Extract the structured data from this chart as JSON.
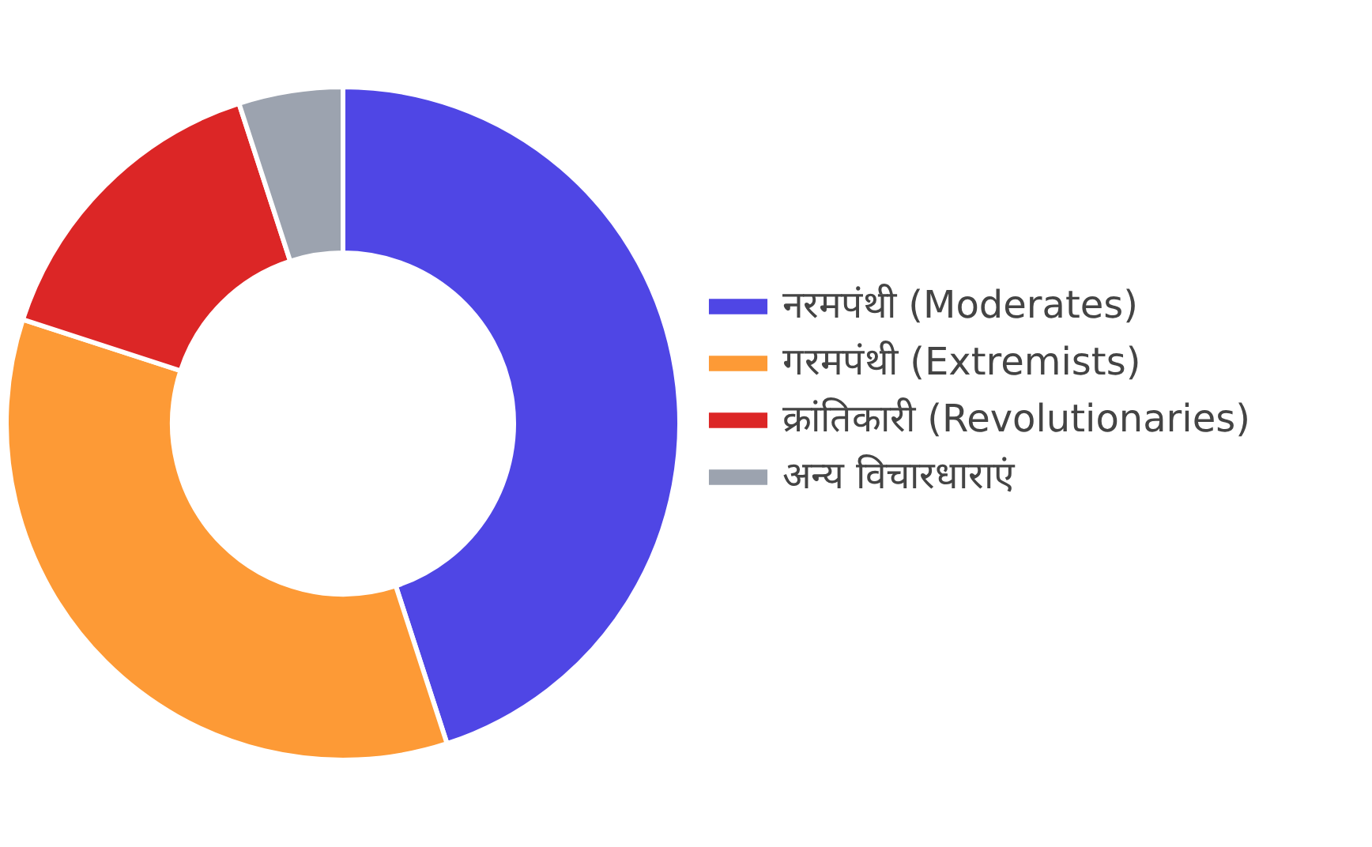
{
  "chart_data": {
    "type": "donut",
    "categories": [
      "नरमपंथी (Moderates)",
      "गरमपंथी (Extremists)",
      "क्रांतिकारी (Revolutionaries)",
      "अन्य विचारधाराएं"
    ],
    "values": [
      45,
      35,
      15,
      5
    ],
    "colors": [
      "#4f46e5",
      "#fd9a36",
      "#dc2626",
      "#9ca3af"
    ],
    "legend": "right"
  }
}
